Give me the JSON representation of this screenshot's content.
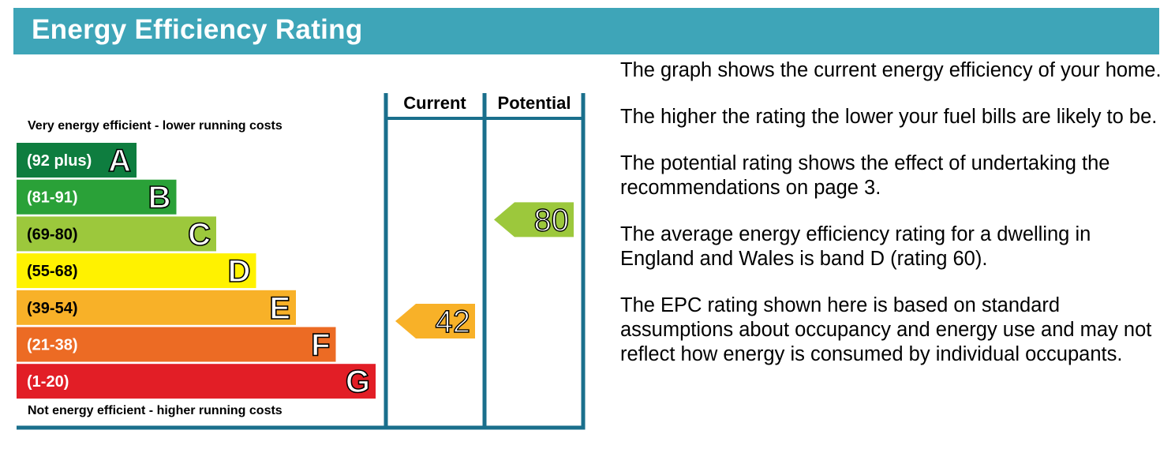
{
  "header": {
    "title": "Energy Efficiency Rating"
  },
  "scale_labels": {
    "top": "Very energy efficient - lower running costs",
    "bottom": "Not energy efficient - higher running costs"
  },
  "columns": {
    "current": "Current",
    "potential": "Potential"
  },
  "chart_data": {
    "type": "bar",
    "bands": [
      {
        "letter": "A",
        "range": "(92 plus)",
        "min": 92,
        "max": 100,
        "color": "#0e7d3f"
      },
      {
        "letter": "B",
        "range": "(81-91)",
        "min": 81,
        "max": 91,
        "color": "#2aa138"
      },
      {
        "letter": "C",
        "range": "(69-80)",
        "min": 69,
        "max": 80,
        "color": "#9cc83c"
      },
      {
        "letter": "D",
        "range": "(55-68)",
        "min": 55,
        "max": 68,
        "color": "#fff200"
      },
      {
        "letter": "E",
        "range": "(39-54)",
        "min": 39,
        "max": 54,
        "color": "#f8b128"
      },
      {
        "letter": "F",
        "range": "(21-38)",
        "min": 21,
        "max": 38,
        "color": "#ec6b24"
      },
      {
        "letter": "G",
        "range": "(1-20)",
        "min": 1,
        "max": 20,
        "color": "#e21e26"
      }
    ],
    "current": {
      "value": 42,
      "band": "E",
      "color": "#f8b128"
    },
    "potential": {
      "value": 80,
      "band": "C",
      "color": "#9cc83c"
    },
    "frame_color": "#1a6f8c"
  },
  "description": [
    "The graph shows the current energy efficiency of your home.",
    "The higher the rating the lower your fuel bills are likely to be.",
    "The potential rating shows the effect of undertaking the recommendations on page 3.",
    "The average energy efficiency rating for a dwelling in England and Wales is band D (rating 60).",
    "The EPC rating shown here is based on standard assumptions about occupancy and energy use and may not reflect how energy is consumed by individual occupants."
  ]
}
